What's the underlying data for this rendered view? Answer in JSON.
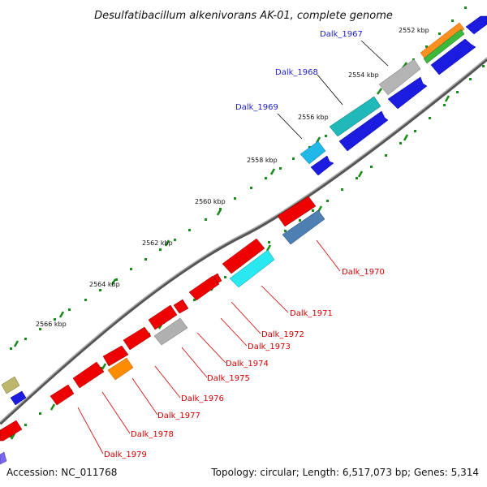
{
  "title": "Desulfatibacillum alkenivorans AK-01, complete genome",
  "footer": {
    "accession": "Accession: NC_011768",
    "summary": "Topology: circular; Length: 6,517,073 bp; Genes: 5,314"
  },
  "colors": {
    "backbone": "#8c8c8c",
    "tick_dots": "#1a8a1a",
    "label_forward": "#1c1ccf",
    "label_reverse": "#d00000"
  },
  "ticks": [
    "2552 kbp",
    "2554 kbp",
    "2556 kbp",
    "2558 kbp",
    "2560 kbp",
    "2562 kbp",
    "2564 kbp",
    "2566 kbp"
  ],
  "genes_forward": [
    {
      "name": "Dalk_1967",
      "color": "#a9a9a9"
    },
    {
      "name": "Dalk_1968",
      "color": "#20b8b8"
    },
    {
      "name": "Dalk_1969",
      "color": "#20b8e8"
    }
  ],
  "genes_reverse": [
    {
      "name": "Dalk_1970",
      "color": "#4d7fb2"
    },
    {
      "name": "Dalk_1971",
      "color": "#2ae8f0"
    },
    {
      "name": "Dalk_1972",
      "color": "#ee0000"
    },
    {
      "name": "Dalk_1973",
      "color": "#ee0000"
    },
    {
      "name": "Dalk_1974",
      "color": "#ee0000"
    },
    {
      "name": "Dalk_1975",
      "color": "#b0b0b0"
    },
    {
      "name": "Dalk_1976",
      "color": "#ee0000"
    },
    {
      "name": "Dalk_1977",
      "color": "#ff8c00"
    },
    {
      "name": "Dalk_1978",
      "color": "#ee0000"
    },
    {
      "name": "Dalk_1979",
      "color": "#ee0000"
    }
  ]
}
